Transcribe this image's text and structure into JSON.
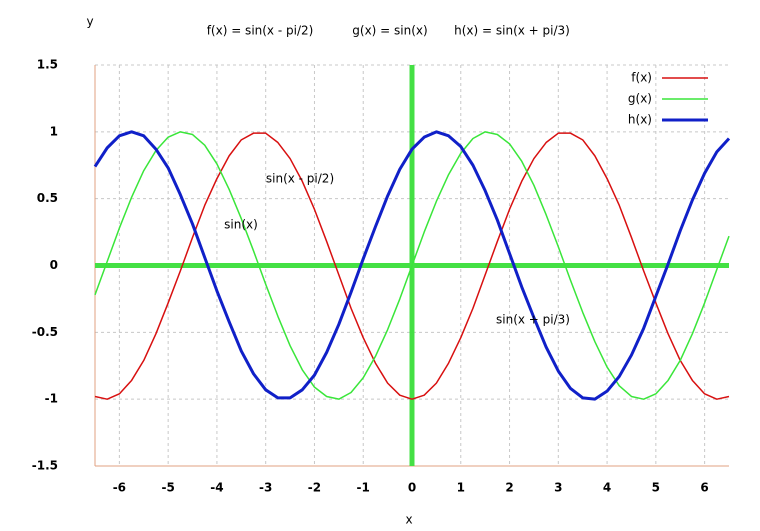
{
  "chart_data": {
    "type": "line",
    "titles": [
      "f(x) = sin(x - pi/2)",
      "g(x) = sin(x)",
      "h(x) = sin(x + pi/3)"
    ],
    "x_label": "x",
    "y_label": "y",
    "annotations": [
      "sin(x - pi/2)",
      "sin(x)",
      "sin(x + pi/3)"
    ],
    "x": [
      -6.5,
      -6.25,
      -6,
      -5.75,
      -5.5,
      -5.25,
      -5,
      -4.75,
      -4.5,
      -4.25,
      -4,
      -3.75,
      -3.5,
      -3.25,
      -3,
      -2.75,
      -2.5,
      -2.25,
      -2,
      -1.75,
      -1.5,
      -1.25,
      -1,
      -0.75,
      -0.5,
      -0.25,
      0,
      0.25,
      0.5,
      0.75,
      1,
      1.25,
      1.5,
      1.75,
      2,
      2.25,
      2.5,
      2.75,
      3,
      3.25,
      3.5,
      3.75,
      4,
      4.25,
      4.5,
      4.75,
      5,
      5.25,
      5.5,
      5.75,
      6,
      6.25,
      6.5
    ],
    "series": [
      {
        "name": "f(x)",
        "color": "#d81010",
        "values": [
          -0.98,
          -1.0,
          -0.96,
          -0.86,
          -0.71,
          -0.51,
          -0.28,
          -0.04,
          0.21,
          0.45,
          0.65,
          0.82,
          0.94,
          0.99,
          0.99,
          0.92,
          0.8,
          0.63,
          0.42,
          0.18,
          -0.07,
          -0.32,
          -0.54,
          -0.73,
          -0.88,
          -0.97,
          -1,
          -0.97,
          -0.88,
          -0.73,
          -0.54,
          -0.32,
          -0.07,
          0.18,
          0.42,
          0.63,
          0.8,
          0.92,
          0.99,
          0.99,
          0.94,
          0.82,
          0.65,
          0.45,
          0.21,
          -0.04,
          -0.28,
          -0.51,
          -0.71,
          -0.86,
          -0.96,
          -1.0,
          -0.98
        ]
      },
      {
        "name": "g(x)",
        "color": "#3ae63a",
        "values": [
          -0.22,
          0.03,
          0.28,
          0.51,
          0.71,
          0.86,
          0.96,
          1.0,
          0.98,
          0.9,
          0.76,
          0.57,
          0.35,
          0.11,
          -0.14,
          -0.38,
          -0.6,
          -0.78,
          -0.91,
          -0.98,
          -1.0,
          -0.95,
          -0.84,
          -0.68,
          -0.48,
          -0.25,
          0,
          0.25,
          0.48,
          0.68,
          0.84,
          0.95,
          1.0,
          0.98,
          0.91,
          0.78,
          0.6,
          0.38,
          0.14,
          -0.11,
          -0.35,
          -0.57,
          -0.76,
          -0.9,
          -0.98,
          -1.0,
          -0.96,
          -0.86,
          -0.71,
          -0.51,
          -0.28,
          -0.03,
          0.22
        ]
      },
      {
        "name": "h(x)",
        "color": "#1020c8",
        "values": [
          0.74,
          0.88,
          0.97,
          1.0,
          0.97,
          0.87,
          0.73,
          0.53,
          0.31,
          0.06,
          -0.19,
          -0.42,
          -0.64,
          -0.81,
          -0.93,
          -0.99,
          -0.99,
          -0.93,
          -0.82,
          -0.65,
          -0.44,
          -0.2,
          0.05,
          0.29,
          0.52,
          0.72,
          0.87,
          0.96,
          1.0,
          0.97,
          0.89,
          0.75,
          0.56,
          0.34,
          0.09,
          -0.16,
          -0.39,
          -0.61,
          -0.79,
          -0.92,
          -0.99,
          -1.0,
          -0.94,
          -0.83,
          -0.67,
          -0.47,
          -0.23,
          0.01,
          0.26,
          0.49,
          0.69,
          0.85,
          0.95
        ]
      }
    ],
    "xlim": [
      -6.5,
      6.5
    ],
    "ylim": [
      -1.5,
      1.5
    ],
    "xticks": [
      -6,
      -5,
      -4,
      -3,
      -2,
      -1,
      0,
      1,
      2,
      3,
      4,
      5,
      6
    ],
    "yticks": [
      1.5,
      1,
      0.5,
      0,
      -0.5,
      -1,
      -1.5
    ],
    "grid": true,
    "zero_axes": true,
    "legend": "upper right"
  }
}
